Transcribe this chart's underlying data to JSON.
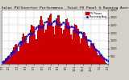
{
  "title": "Solar PV/Inverter Performance  Total PV Panel & Running Average Power Output",
  "bar_color": "#cc0000",
  "avg_color": "#0000ee",
  "bg_color": "#d4d0c8",
  "plot_bg": "#ffffff",
  "grid_color": "#aaaaaa",
  "ylim": [
    0,
    3500
  ],
  "ytick_vals": [
    500,
    1000,
    1500,
    2000,
    2500,
    3000,
    3500
  ],
  "ytick_labels": [
    "500",
    "1000",
    "1500",
    "2000",
    "2500",
    "3000",
    "3500"
  ],
  "title_fontsize": 3.2,
  "axis_fontsize": 2.4,
  "legend_fontsize": 2.4,
  "n_bars": 90,
  "seed": 12
}
